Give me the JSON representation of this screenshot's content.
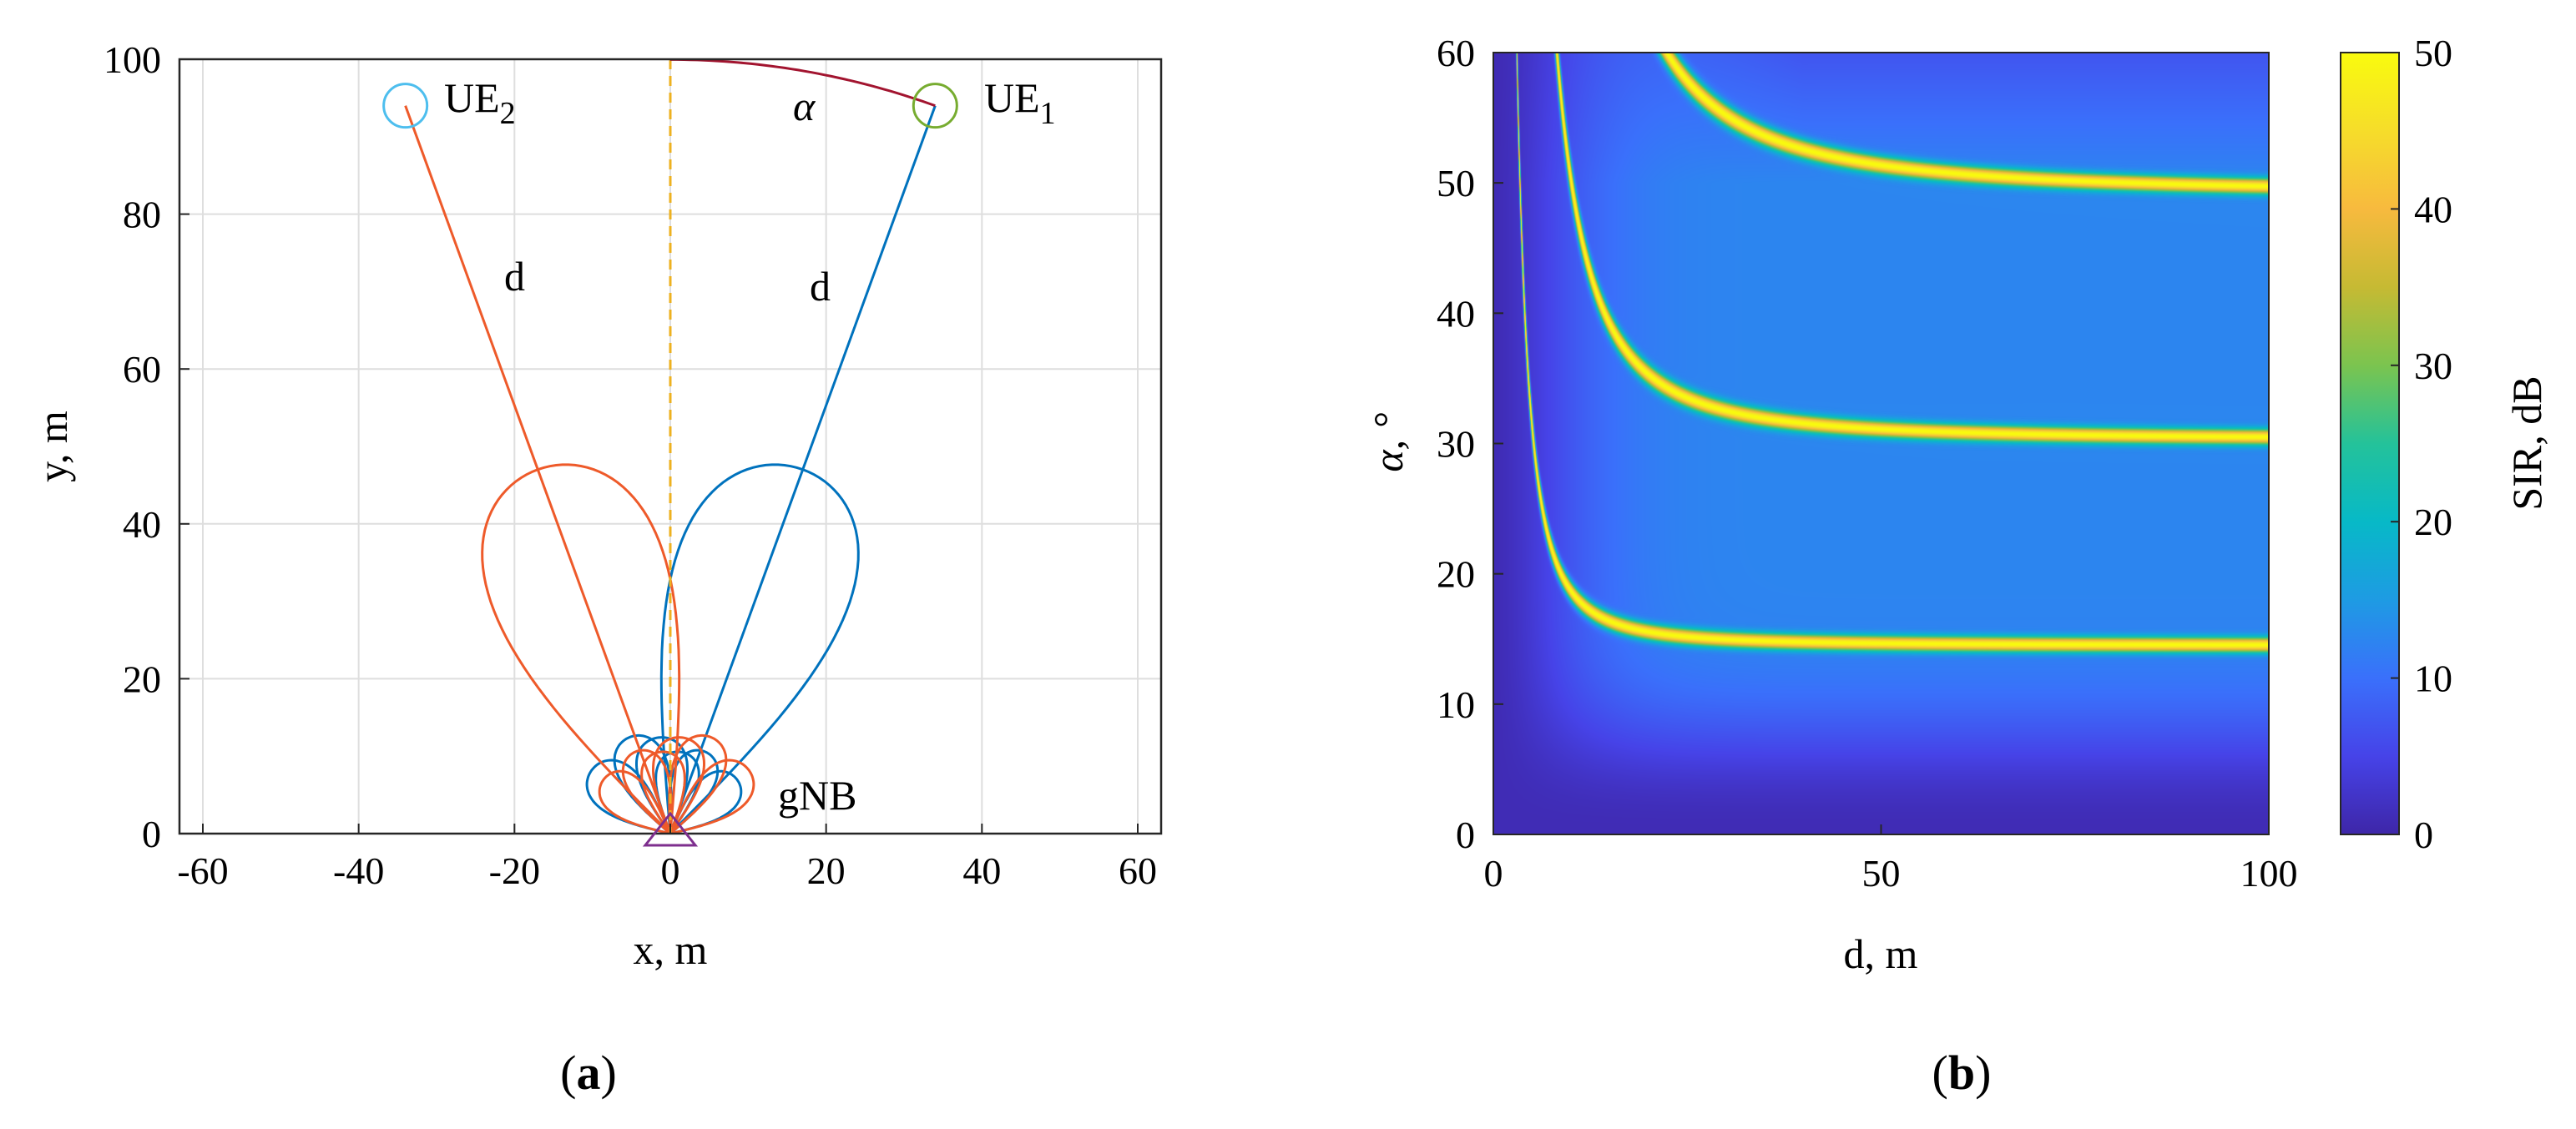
{
  "panels": {
    "a": {
      "caption_letter": "a"
    },
    "b": {
      "caption_letter": "b"
    }
  },
  "chart_data": [
    {
      "id": "a",
      "type": "line",
      "xlabel": "x, m",
      "ylabel": "y, m",
      "xlim": [
        -63,
        63
      ],
      "ylim": [
        0,
        100
      ],
      "xticks": [
        -60,
        -40,
        -20,
        0,
        20,
        40,
        60
      ],
      "yticks": [
        0,
        20,
        40,
        60,
        80,
        100
      ],
      "grid": true,
      "annotations": {
        "ue1": {
          "sub": "1"
        },
        "ue2": {
          "sub": "2"
        },
        "ue_prefix": "UE",
        "gnb": "gNB",
        "d_left": "d",
        "d_right": "d",
        "alpha": "α"
      },
      "colors": {
        "ue1_beam": "#0072BD",
        "ue2_beam": "#EE5A2A",
        "ue1_marker": "#77AC30",
        "ue2_marker": "#4DBEEE",
        "axis_dash": "#EDB120",
        "gnb": "#7E2F8E",
        "alpha_arc": "#A2142F"
      },
      "ue1": {
        "x": 34,
        "y": 94
      },
      "ue2": {
        "x": -34,
        "y": 94
      },
      "gnb": {
        "x": 0,
        "y": 0
      },
      "main_lobe_len": 50,
      "side_lobes": [
        {
          "angle_deg": 40,
          "len": 13
        },
        {
          "angle_deg": 67,
          "len": 13.5
        },
        {
          "angle_deg": 83,
          "len": 12.5
        }
      ]
    },
    {
      "id": "b",
      "type": "heatmap",
      "xlabel": "d, m",
      "ylabel": "α, °",
      "xlim": [
        0,
        100
      ],
      "ylim": [
        0,
        60
      ],
      "xticks": [
        0,
        50,
        100
      ],
      "yticks": [
        0,
        10,
        20,
        30,
        40,
        50,
        60
      ],
      "colorbar": {
        "label": "SIR, dB",
        "range": [
          0,
          50
        ],
        "ticks": [
          0,
          10,
          20,
          30,
          40,
          50
        ]
      },
      "ridges": [
        {
          "asymptote_alpha": 14.5,
          "k": 420
        },
        {
          "asymptote_alpha": 30.3,
          "k": 2000
        },
        {
          "asymptote_alpha": 49.2,
          "k": 5400
        }
      ]
    }
  ]
}
